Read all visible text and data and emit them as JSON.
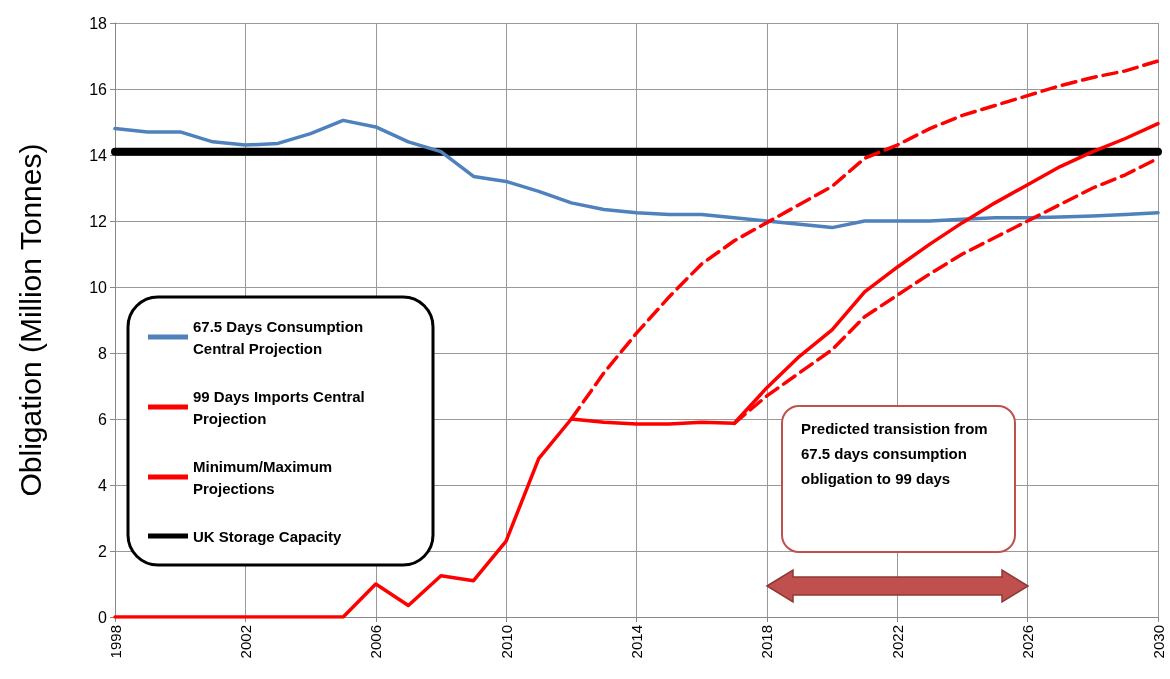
{
  "chart_data": {
    "type": "line",
    "ylabel": "Obligation (Million Tonnes)",
    "x": [
      1998,
      1999,
      2000,
      2001,
      2002,
      2003,
      2004,
      2005,
      2006,
      2007,
      2008,
      2009,
      2010,
      2011,
      2012,
      2013,
      2014,
      2015,
      2016,
      2017,
      2018,
      2019,
      2020,
      2021,
      2022,
      2023,
      2024,
      2025,
      2026,
      2027,
      2028,
      2029,
      2030
    ],
    "series": [
      {
        "name": "67.5 Days Consumption Central Projection",
        "color": "#4f81bd",
        "line_style": "solid",
        "values": [
          14.8,
          14.7,
          14.7,
          14.4,
          14.3,
          14.35,
          14.65,
          15.05,
          14.85,
          14.4,
          14.1,
          13.35,
          13.2,
          12.9,
          12.55,
          12.35,
          12.25,
          12.2,
          12.2,
          12.1,
          12.0,
          11.9,
          11.8,
          12.0,
          12.0,
          12.0,
          12.05,
          12.1,
          12.1,
          12.12,
          12.15,
          12.2,
          12.25
        ]
      },
      {
        "name": "99 Days Imports Central Projection",
        "color": "#ff0000",
        "line_style": "solid",
        "values": [
          0,
          0,
          0,
          0,
          0,
          0,
          0,
          0,
          1.0,
          0.35,
          1.25,
          1.1,
          2.3,
          4.8,
          6.0,
          5.9,
          5.85,
          5.85,
          5.9,
          5.87,
          6.95,
          7.9,
          8.7,
          9.85,
          10.6,
          11.3,
          11.95,
          12.55,
          13.1,
          13.65,
          14.1,
          14.5,
          14.95
        ]
      },
      {
        "name": "Minimum/Maximum Projections",
        "color": "#ff0000",
        "line_style": "dashed",
        "x": [
          2012,
          2013,
          2014,
          2015,
          2016,
          2017,
          2018,
          2019,
          2020,
          2021,
          2022,
          2023,
          2024,
          2025,
          2026,
          2027,
          2028,
          2029,
          2030
        ],
        "values": [
          6.0,
          7.4,
          8.6,
          9.7,
          10.7,
          11.4,
          11.95,
          12.5,
          13.05,
          13.9,
          14.3,
          14.8,
          15.2,
          15.5,
          15.8,
          16.1,
          16.35,
          16.55,
          16.85
        ]
      },
      {
        "color": "#ff0000",
        "line_style": "dashed",
        "x": [
          2017,
          2018,
          2019,
          2020,
          2021,
          2022,
          2023,
          2024,
          2025,
          2026,
          2027,
          2028,
          2029,
          2030
        ],
        "values": [
          5.87,
          6.7,
          7.4,
          8.1,
          9.1,
          9.75,
          10.4,
          11.0,
          11.5,
          12.0,
          12.5,
          13.0,
          13.4,
          13.9
        ]
      },
      {
        "name": "UK Storage Capacity",
        "color": "#000000",
        "line_style": "solid",
        "x": [
          1998,
          2030
        ],
        "values": [
          14.1,
          14.1
        ]
      }
    ],
    "xlim": [
      1998,
      2030
    ],
    "xticks": [
      1998,
      2002,
      2006,
      2010,
      2014,
      2018,
      2022,
      2026,
      2030
    ],
    "ylim": [
      0,
      18
    ],
    "yticks": [
      0,
      2,
      4,
      6,
      8,
      10,
      12,
      14,
      16,
      18
    ],
    "grid": true,
    "legend": "left",
    "marker": "none",
    "annotations": [
      "Predicted transistion from 67.5 days consumption obligation to 99 days"
    ]
  }
}
